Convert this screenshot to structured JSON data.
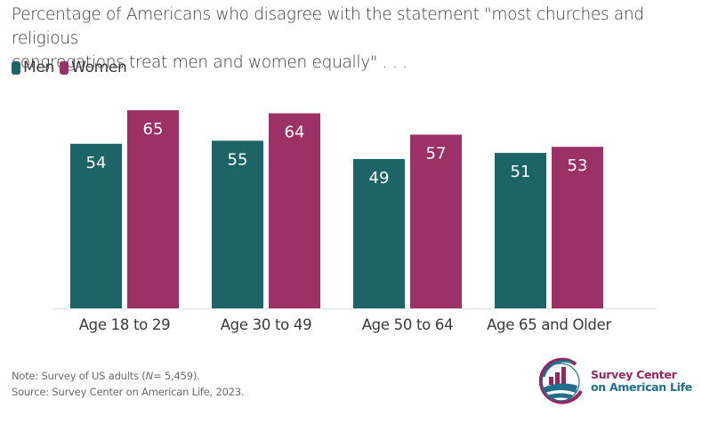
{
  "chart_data": {
    "type": "bar",
    "title": "Percentage of Americans who disagree with the statement \"most churches and religious congregations treat men and women equally\" . . .",
    "title_lines": [
      "Percentage of Americans who disagree with the statement \"most churches and religious",
      "congregations treat men and women equally\" . . ."
    ],
    "categories": [
      "Age 18 to 29",
      "Age 30 to 49",
      "Age 50 to 64",
      "Age 65 and Older"
    ],
    "series": [
      {
        "name": "Men",
        "color": "#1d6467",
        "values": [
          54,
          55,
          49,
          51
        ]
      },
      {
        "name": "Women",
        "color": "#9b3167",
        "values": [
          65,
          64,
          57,
          53
        ]
      }
    ],
    "xlabel": "",
    "ylabel": "",
    "ylim": [
      0,
      100
    ],
    "grid": false,
    "legend": "top-left",
    "data_labels": true
  },
  "legend": {
    "items": [
      {
        "label": "Men",
        "color": "#1d6467"
      },
      {
        "label": "Women",
        "color": "#9b3167"
      }
    ]
  },
  "footer": {
    "note_prefix": "Note: Survey of US adults (",
    "note_n": "N",
    "note_suffix": "= 5,459).",
    "source": "Source: Survey Center on American Life, 2023."
  },
  "logo": {
    "line1": "Survey Center",
    "line2": "on American Life",
    "color1": "#97265f",
    "color2": "#1f6f8b"
  }
}
